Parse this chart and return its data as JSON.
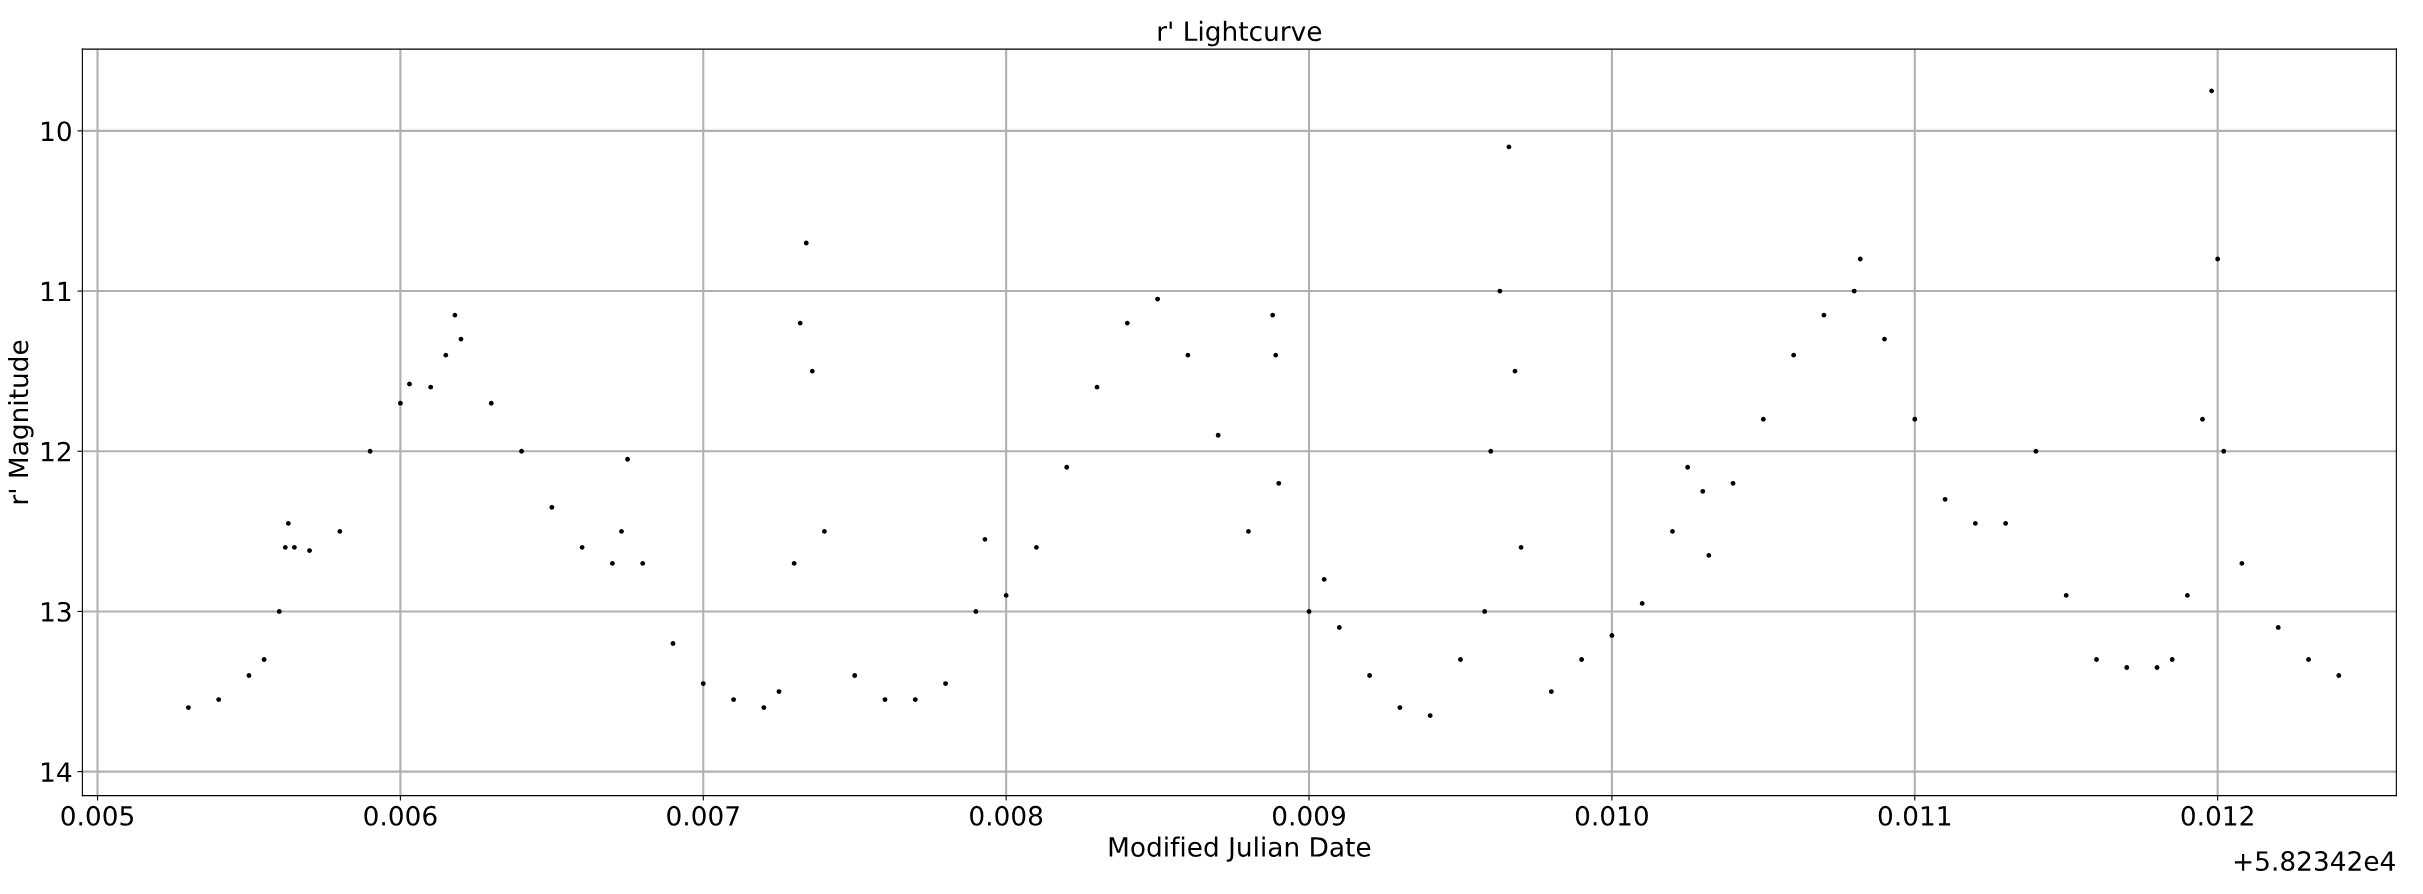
{
  "chart_data": {
    "type": "scatter",
    "title": "r' Lightcurve",
    "xlabel": "Modified Julian Date",
    "ylabel": "r' Magnitude",
    "annotations": [
      "+5.82342e4"
    ],
    "x": [
      0.0053,
      0.0054,
      0.0055,
      0.00555,
      0.0056,
      0.00562,
      0.00563,
      0.00565,
      0.0057,
      0.0058,
      0.0059,
      0.006,
      0.00603,
      0.0061,
      0.00615,
      0.00618,
      0.0062,
      0.0063,
      0.0064,
      0.0065,
      0.0066,
      0.0067,
      0.00673,
      0.00675,
      0.0068,
      0.0069,
      0.007,
      0.0071,
      0.0072,
      0.00725,
      0.0073,
      0.00732,
      0.00734,
      0.00736,
      0.0074,
      0.0075,
      0.0076,
      0.0077,
      0.0078,
      0.0079,
      0.00793,
      0.008,
      0.0081,
      0.0082,
      0.0083,
      0.0084,
      0.0085,
      0.0086,
      0.0087,
      0.0088,
      0.00888,
      0.00889,
      0.0089,
      0.009,
      0.00905,
      0.0091,
      0.0092,
      0.0093,
      0.0094,
      0.0095,
      0.00958,
      0.0096,
      0.00963,
      0.00966,
      0.00968,
      0.0097,
      0.0098,
      0.0099,
      0.01,
      0.0101,
      0.0102,
      0.01025,
      0.0103,
      0.01032,
      0.0104,
      0.0105,
      0.0106,
      0.0107,
      0.0108,
      0.01082,
      0.0109,
      0.011,
      0.0111,
      0.0112,
      0.0113,
      0.0114,
      0.0115,
      0.0116,
      0.0117,
      0.0118,
      0.01185,
      0.0119,
      0.01195,
      0.01198,
      0.012,
      0.01202,
      0.01208,
      0.0122,
      0.0123,
      0.0124
    ],
    "values": [
      13.6,
      13.55,
      13.4,
      13.3,
      13.0,
      12.6,
      12.45,
      12.6,
      12.62,
      12.5,
      12.0,
      11.7,
      11.58,
      11.6,
      11.4,
      11.15,
      11.3,
      11.7,
      12.0,
      12.35,
      12.6,
      12.7,
      12.5,
      12.05,
      12.7,
      13.2,
      13.45,
      13.55,
      13.6,
      13.5,
      12.7,
      11.2,
      10.7,
      11.5,
      12.5,
      13.4,
      13.55,
      13.55,
      13.45,
      13.0,
      12.55,
      12.9,
      12.6,
      12.1,
      11.6,
      11.2,
      11.05,
      11.4,
      11.9,
      12.5,
      11.15,
      11.4,
      12.2,
      13.0,
      12.8,
      13.1,
      13.4,
      13.6,
      13.65,
      13.3,
      13.0,
      12.0,
      11.0,
      10.1,
      11.5,
      12.6,
      13.5,
      13.3,
      13.15,
      12.95,
      12.5,
      12.1,
      12.25,
      12.65,
      12.2,
      11.8,
      11.4,
      11.15,
      11.0,
      10.8,
      11.3,
      11.8,
      12.3,
      12.45,
      12.45,
      12.0,
      12.9,
      13.3,
      13.35,
      13.35,
      13.3,
      12.9,
      11.8,
      9.75,
      10.8,
      12.0,
      12.7,
      13.1,
      13.3,
      13.4
    ],
    "color": "#000000",
    "marker": "circle",
    "grid": true,
    "xlim": [
      0.00495,
      0.01259
    ],
    "xticks": [
      {
        "value": 0.005,
        "label": "0.005"
      },
      {
        "value": 0.006,
        "label": "0.006"
      },
      {
        "value": 0.007,
        "label": "0.007"
      },
      {
        "value": 0.008,
        "label": "0.008"
      },
      {
        "value": 0.009,
        "label": "0.009"
      },
      {
        "value": 0.01,
        "label": "0.010"
      },
      {
        "value": 0.011,
        "label": "0.011"
      },
      {
        "value": 0.012,
        "label": "0.012"
      }
    ],
    "ylim": [
      14.15,
      9.49
    ],
    "yticks": [
      10,
      11,
      12,
      13,
      14
    ]
  }
}
